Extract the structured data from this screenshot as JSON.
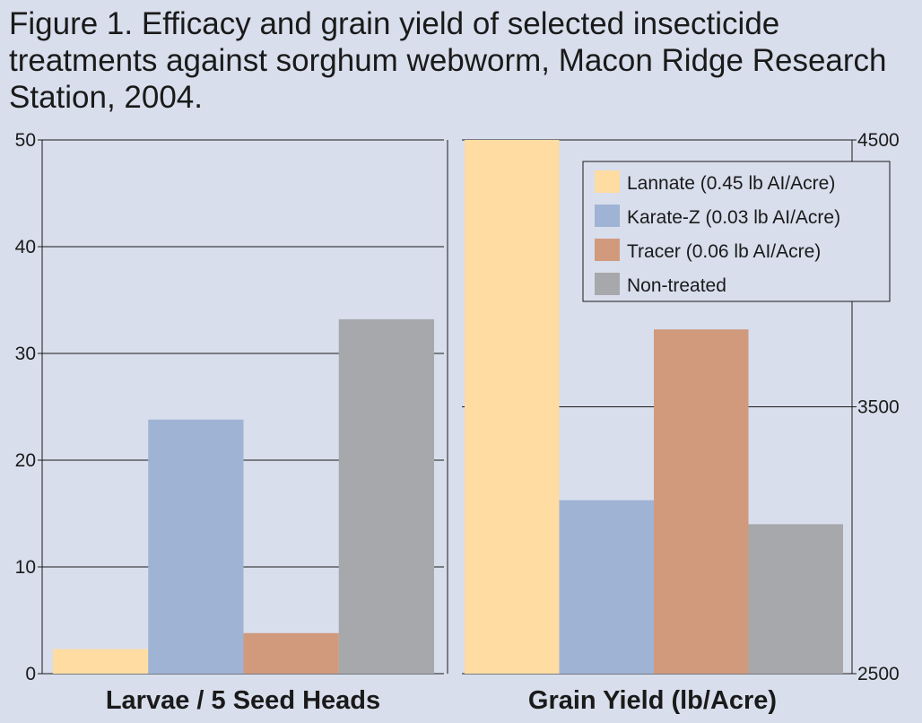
{
  "title": "Figure 1. Efficacy and grain yield of selected insecticide treatments against sorghum webworm, Macon Ridge Research Station, 2004.",
  "colors": {
    "Lannate (0.45 lb AI/Acre)": "#fedca2",
    "Karate-Z (0.03 lb AI/Acre)": "#9fb3d4",
    "Tracer (0.06 lb AI/Acre)": "#d19a7d",
    "Non-treated": "#a6a8ab"
  },
  "chart_data": [
    {
      "type": "bar",
      "xlabel": "Larvae / 5 Seed Heads",
      "ylim": [
        0,
        50
      ],
      "yticks": [
        0,
        10,
        20,
        30,
        40,
        50
      ],
      "grid": true,
      "series": [
        {
          "name": "Lannate (0.45 lb AI/Acre)",
          "value": 2.3
        },
        {
          "name": "Karate-Z (0.03 lb AI/Acre)",
          "value": 23.8
        },
        {
          "name": "Tracer (0.06 lb AI/Acre)",
          "value": 3.8
        },
        {
          "name": "Non-treated",
          "value": 33.2
        }
      ]
    },
    {
      "type": "bar",
      "xlabel": "Grain Yield (lb/Acre)",
      "ylim": [
        2500,
        4500
      ],
      "yticks": [
        2500,
        3500,
        4500
      ],
      "grid": true,
      "legend": "top-right",
      "series": [
        {
          "name": "Lannate (0.45 lb AI/Acre)",
          "value": 4500
        },
        {
          "name": "Karate-Z (0.03 lb AI/Acre)",
          "value": 3150
        },
        {
          "name": "Tracer (0.06 lb AI/Acre)",
          "value": 3790
        },
        {
          "name": "Non-treated",
          "value": 3060
        }
      ]
    }
  ]
}
